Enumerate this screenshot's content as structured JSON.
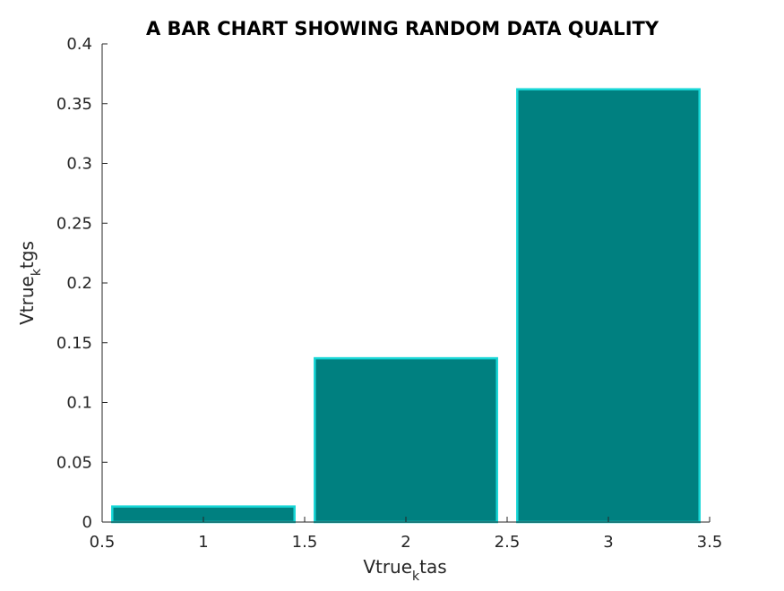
{
  "chart_data": {
    "type": "bar",
    "title": "A BAR CHART SHOWING RANDOM DATA QUALITY",
    "xlabel": {
      "main": "Vtrue",
      "sub": "k",
      "tail": "tas"
    },
    "ylabel": {
      "main": "Vtrue",
      "sub": "k",
      "tail": "tgs"
    },
    "x": [
      1,
      2,
      3
    ],
    "values": [
      0.013,
      0.137,
      0.362
    ],
    "bar_width": 0.9,
    "xlim": [
      0.5,
      3.5
    ],
    "ylim": [
      0,
      0.4
    ],
    "xticks": [
      0.5,
      1,
      1.5,
      2,
      2.5,
      3,
      3.5
    ],
    "xtick_labels": [
      "0.5",
      "1",
      "1.5",
      "2",
      "2.5",
      "3",
      "3.5"
    ],
    "yticks": [
      0,
      0.05,
      0.1,
      0.15,
      0.2,
      0.25,
      0.3,
      0.35,
      0.4
    ],
    "ytick_labels": [
      "0",
      "0.05",
      "0.1",
      "0.15",
      "0.2",
      "0.25",
      "0.3",
      "0.35",
      "0.4"
    ],
    "grid": false,
    "bar_fill": "#008080",
    "bar_edge": "#17d6d6",
    "axis_color": "#262626"
  }
}
